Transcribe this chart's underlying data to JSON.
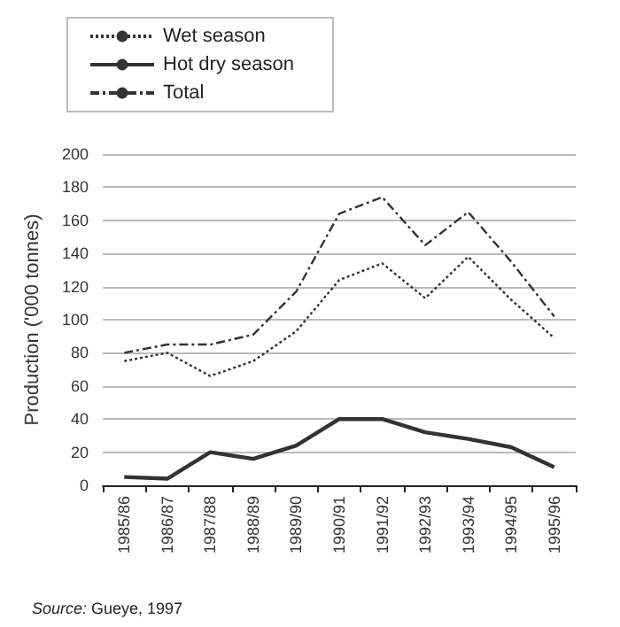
{
  "chart_data": {
    "type": "line",
    "ylabel": "Production ('000 tonnes)",
    "categories": [
      "1985/86",
      "1986/87",
      "1987/88",
      "1988/89",
      "1989/90",
      "1990/91",
      "1991/92",
      "1992/93",
      "1993/94",
      "1994/95",
      "1995/96"
    ],
    "series": [
      {
        "name": "Wet season",
        "color": "#333333",
        "line_style": "dotted",
        "values": [
          75,
          80,
          66,
          75,
          93,
          124,
          134,
          113,
          138,
          112,
          89
        ]
      },
      {
        "name": "Hot dry season",
        "color": "#333333",
        "line_style": "solid",
        "values": [
          5,
          4,
          20,
          16,
          24,
          40,
          40,
          32,
          28,
          23,
          11
        ]
      },
      {
        "name": "Total",
        "color": "#333333",
        "line_style": "dashdot",
        "values": [
          80,
          85,
          85,
          91,
          117,
          164,
          174,
          145,
          165,
          135,
          102
        ]
      }
    ],
    "ylim": [
      0,
      200
    ],
    "yticks": [
      0,
      20,
      40,
      60,
      80,
      100,
      120,
      140,
      160,
      180,
      200
    ],
    "grid": "y",
    "legend": "top left",
    "marker": "none",
    "annotations": [
      "Source: Gueye, 1997"
    ]
  }
}
